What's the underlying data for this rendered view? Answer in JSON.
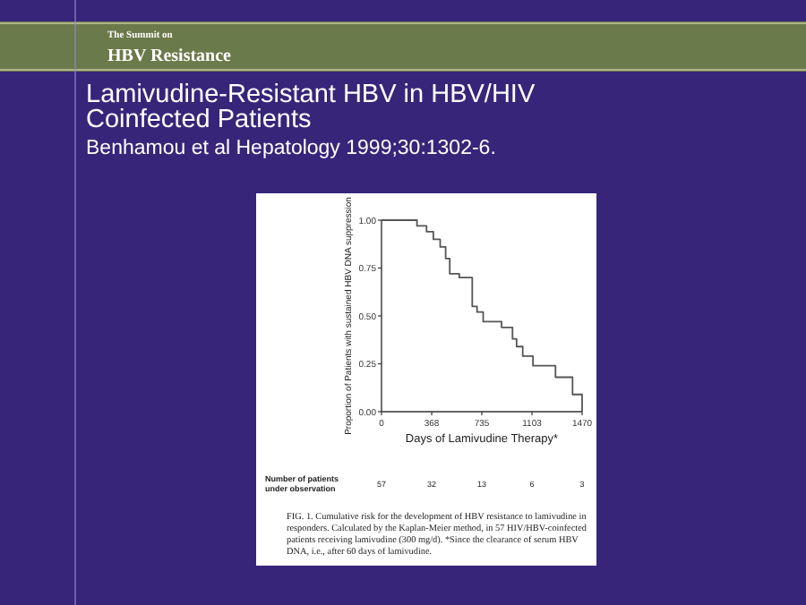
{
  "chart_data": {
    "type": "step",
    "title": "Lamivudine-Resistant HBV in HBV/HIV Coinfected Patients",
    "subtitle": "Benhamou et al  Hepatology 1999;30:1302-6.",
    "xlabel": "Days of Lamivudine Therapy*",
    "ylabel": "Proportion of Patients with sustained HBV DNA suppression",
    "x": [
      0,
      260,
      330,
      380,
      430,
      470,
      500,
      570,
      665,
      700,
      745,
      880,
      960,
      990,
      1035,
      1110,
      1275,
      1400,
      1470
    ],
    "series": [
      {
        "color": "#555555",
        "values": [
          1,
          0.97,
          0.94,
          0.9,
          0.86,
          0.8,
          0.72,
          0.7,
          0.55,
          0.52,
          0.47,
          0.44,
          0.38,
          0.34,
          0.29,
          0.24,
          0.18,
          0.09,
          0
        ]
      }
    ],
    "xlim": [
      0,
      1470
    ],
    "xticks": [
      0,
      368,
      735,
      1103,
      1470
    ],
    "ylim": [
      0,
      1
    ],
    "yticks": [
      {
        "value": 0,
        "label": "0.00"
      },
      {
        "value": 0.25,
        "label": "0.25"
      },
      {
        "value": 0.5,
        "label": "0.50"
      },
      {
        "value": 0.75,
        "label": "0.75"
      },
      {
        "value": 1,
        "label": "1.00"
      }
    ],
    "grid": false,
    "marker": "none",
    "line_style": "solid",
    "annotations": [
      "The Summit on",
      "HBV Resistance",
      "Number of patients under observation",
      "FIG. 1. Cumulative risk for the development of HBV resistance to lamivudine in responders. Calculated by the Kaplan-Meier method, in 57 HIV/HBV-coinfected patients receiving lamivudine (300 mg/d). *Since the clearance of serum HBV DNA, i.e., after 60 days of lamivudine.",
      "57",
      "32",
      "13",
      "6",
      "3"
    ]
  }
}
